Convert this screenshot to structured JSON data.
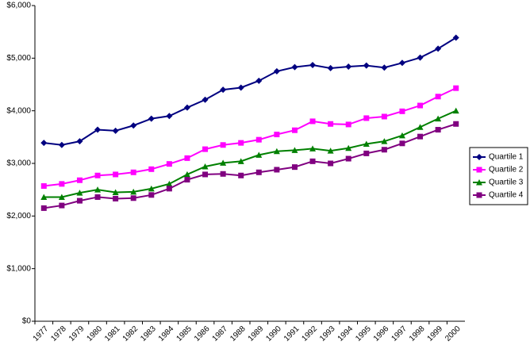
{
  "chart_data": {
    "type": "line",
    "categories": [
      "1977",
      "1978",
      "1979",
      "1980",
      "1981",
      "1982",
      "1983",
      "1984",
      "1985",
      "1986",
      "1987",
      "1988",
      "1989",
      "1990",
      "1991",
      "1992",
      "1993",
      "1994",
      "1995",
      "1996",
      "1997",
      "1998",
      "1999",
      "2000"
    ],
    "series": [
      {
        "name": "Quartile 1",
        "color": "#000080",
        "marker": "diamond",
        "values": [
          3390,
          3350,
          3420,
          3640,
          3620,
          3720,
          3850,
          3900,
          4060,
          4210,
          4400,
          4440,
          4570,
          4750,
          4830,
          4870,
          4810,
          4840,
          4860,
          4820,
          4910,
          5010,
          5180,
          5390
        ]
      },
      {
        "name": "Quartile 2",
        "color": "#ff00ff",
        "marker": "square",
        "values": [
          2570,
          2610,
          2680,
          2770,
          2790,
          2830,
          2890,
          2990,
          3100,
          3270,
          3350,
          3390,
          3450,
          3550,
          3630,
          3800,
          3750,
          3740,
          3860,
          3890,
          3990,
          4100,
          4270,
          4430
        ]
      },
      {
        "name": "Quartile 3",
        "color": "#008000",
        "marker": "triangle",
        "values": [
          2360,
          2360,
          2440,
          2500,
          2450,
          2460,
          2520,
          2610,
          2790,
          2940,
          3010,
          3040,
          3160,
          3230,
          3250,
          3280,
          3240,
          3290,
          3370,
          3420,
          3530,
          3690,
          3850,
          4000
        ]
      },
      {
        "name": "Quartile 4",
        "color": "#800080",
        "marker": "square",
        "values": [
          2150,
          2200,
          2290,
          2360,
          2330,
          2340,
          2400,
          2520,
          2690,
          2790,
          2800,
          2770,
          2830,
          2880,
          2930,
          3040,
          3000,
          3090,
          3190,
          3260,
          3380,
          3510,
          3640,
          3750
        ]
      }
    ],
    "ylim": [
      0,
      6000
    ],
    "yticks": [
      {
        "value": 0,
        "label": "$0"
      },
      {
        "value": 1000,
        "label": "$1,000"
      },
      {
        "value": 2000,
        "label": "$2,000"
      },
      {
        "value": 3000,
        "label": "$3,000"
      },
      {
        "value": 4000,
        "label": "$4,000"
      },
      {
        "value": 5000,
        "label": "$5,000"
      },
      {
        "value": 6000,
        "label": "$6,000"
      }
    ],
    "grid": false,
    "legend": "right"
  }
}
